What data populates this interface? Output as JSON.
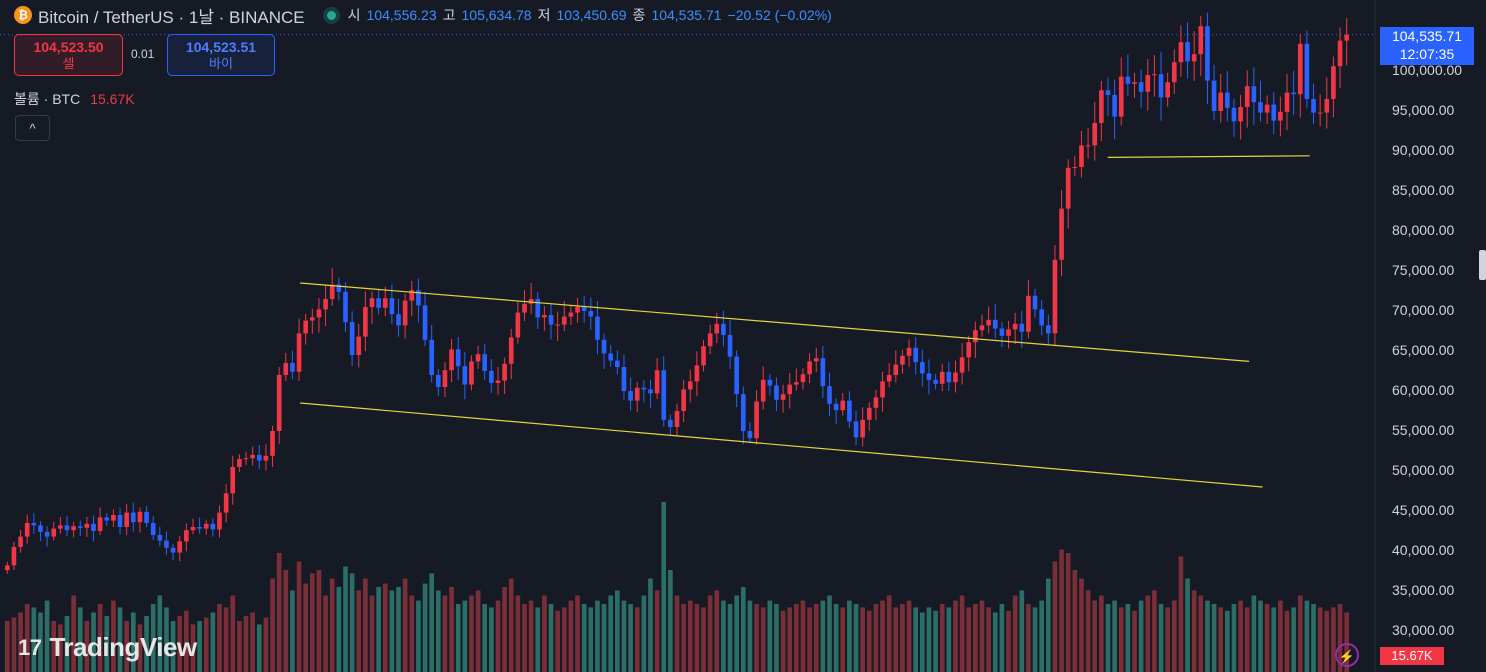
{
  "header": {
    "logo_glyph": "₿",
    "symbol": "Bitcoin / TetherUS · 1날 · BINANCE",
    "open_label": "시",
    "open": "104,556.23",
    "high_label": "고",
    "high": "105,634.78",
    "low_label": "저",
    "low": "103,450.69",
    "close_label": "종",
    "close": "104,535.71",
    "change": "−20.52 (−0.02%)"
  },
  "trade": {
    "sell_price": "104,523.50",
    "sell_label": "셀",
    "spread": "0.01",
    "buy_price": "104,523.51",
    "buy_label": "바이"
  },
  "volume_indicator": {
    "label": "볼륨 · BTC",
    "value": "15.67K"
  },
  "collapse_glyph": "^",
  "price_axis": {
    "labels": [
      "100,000.00",
      "95,000.00",
      "90,000.00",
      "85,000.00",
      "80,000.00",
      "75,000.00",
      "70,000.00",
      "65,000.00",
      "60,000.00",
      "55,000.00",
      "50,000.00",
      "45,000.00",
      "40,000.00",
      "35,000.00",
      "30,000.00"
    ],
    "current_price": "104,535.71",
    "countdown": "12:07:35",
    "volume_value": "15.67K"
  },
  "brand": {
    "icon": "17",
    "name": "TradingView"
  },
  "bolt_icon": "⚡",
  "colors": {
    "background": "#161a25",
    "up": "#f23645",
    "down": "#2962ff",
    "trendline": "#e5d43b",
    "volume_up": "#7a2e37",
    "volume_down": "#2a6e66"
  },
  "chart_data": {
    "type": "candlestick",
    "ylim": [
      30000,
      110000
    ],
    "grid": false,
    "trendlines": [
      {
        "name": "channel-upper",
        "from": [
          0.22,
          73500
        ],
        "to": [
          0.925,
          63700
        ]
      },
      {
        "name": "channel-lower",
        "from": [
          0.22,
          58500
        ],
        "to": [
          0.935,
          48000
        ]
      },
      {
        "name": "support",
        "from": [
          0.82,
          89200
        ],
        "to": [
          0.97,
          89400
        ]
      }
    ],
    "closes": [
      38200,
      40500,
      41800,
      43500,
      43200,
      42400,
      41800,
      42800,
      43200,
      42600,
      43100,
      42900,
      43400,
      42500,
      44200,
      43800,
      44500,
      43000,
      44800,
      43600,
      44900,
      43500,
      42000,
      41300,
      40400,
      39800,
      41200,
      42600,
      43000,
      42800,
      43400,
      42700,
      44800,
      47200,
      50500,
      51500,
      51600,
      52000,
      51300,
      51900,
      55000,
      62000,
      63500,
      62400,
      67200,
      68800,
      69200,
      70200,
      71500,
      73300,
      72400,
      68600,
      64500,
      66800,
      70500,
      71600,
      70400,
      71600,
      69600,
      68200,
      71300,
      72600,
      70700,
      66400,
      62000,
      60500,
      62600,
      65200,
      63100,
      60800,
      63700,
      64600,
      62500,
      61000,
      61300,
      63400,
      66700,
      69800,
      70900,
      71500,
      69200,
      69500,
      68300,
      68300,
      69300,
      69800,
      70500,
      70000,
      69300,
      66400,
      64700,
      63800,
      63000,
      60000,
      58800,
      60400,
      60200,
      59700,
      62600,
      56400,
      55500,
      57500,
      60200,
      61200,
      63200,
      65600,
      67200,
      68400,
      67000,
      64300,
      59600,
      55000,
      54100,
      58700,
      61400,
      60700,
      58900,
      59600,
      60800,
      61100,
      62100,
      63700,
      64100,
      60600,
      58400,
      57600,
      58800,
      56200,
      54200,
      56400,
      57900,
      59200,
      61200,
      62000,
      63300,
      64400,
      65400,
      63600,
      62200,
      61400,
      60900,
      62400,
      61100,
      62300,
      64200,
      66100,
      67600,
      68200,
      68900,
      67800,
      66900,
      67700,
      68400,
      67400,
      71900,
      70200,
      68200,
      67200,
      76400,
      82800,
      87900,
      88000,
      90700,
      90700,
      93500,
      97600,
      97000,
      94300,
      99300,
      98400,
      98600,
      97400,
      99500,
      99600,
      96700,
      98600,
      101100,
      103600,
      101200,
      102100,
      105600,
      98800,
      95000,
      97300,
      95400,
      93700,
      95500,
      98100,
      96100,
      94800,
      95800,
      93800,
      94900,
      97300,
      97100,
      103400,
      96500,
      94800,
      94800,
      96500,
      100600,
      103800,
      104535
    ],
    "volumes": [
      30,
      32,
      35,
      40,
      38,
      35,
      42,
      30,
      28,
      33,
      45,
      38,
      30,
      35,
      40,
      33,
      42,
      38,
      30,
      35,
      28,
      33,
      40,
      45,
      38,
      30,
      33,
      36,
      28,
      30,
      32,
      35,
      40,
      38,
      45,
      30,
      33,
      35,
      28,
      32,
      55,
      70,
      60,
      48,
      65,
      52,
      58,
      60,
      45,
      55,
      50,
      62,
      58,
      48,
      55,
      45,
      50,
      52,
      48,
      50,
      55,
      45,
      42,
      52,
      58,
      48,
      45,
      50,
      40,
      42,
      45,
      48,
      40,
      38,
      42,
      50,
      55,
      45,
      40,
      42,
      38,
      45,
      40,
      36,
      38,
      42,
      45,
      40,
      38,
      42,
      40,
      45,
      48,
      42,
      40,
      38,
      45,
      55,
      48,
      100,
      60,
      45,
      40,
      42,
      40,
      38,
      45,
      48,
      42,
      40,
      45,
      50,
      42,
      40,
      38,
      42,
      40,
      36,
      38,
      40,
      42,
      38,
      40,
      42,
      45,
      40,
      38,
      42,
      40,
      38,
      36,
      40,
      42,
      45,
      38,
      40,
      42,
      38,
      35,
      38,
      36,
      40,
      38,
      42,
      45,
      38,
      40,
      42,
      38,
      35,
      40,
      36,
      45,
      48,
      40,
      38,
      42,
      55,
      65,
      72,
      70,
      60,
      55,
      48,
      42,
      45,
      40,
      42,
      38,
      40,
      36,
      42,
      45,
      48,
      40,
      38,
      42,
      68,
      55,
      48,
      45,
      42,
      40,
      38,
      36,
      40,
      42,
      38,
      45,
      42,
      40,
      38,
      42,
      36,
      38,
      45,
      42,
      40,
      38,
      36,
      38,
      40,
      35
    ]
  }
}
